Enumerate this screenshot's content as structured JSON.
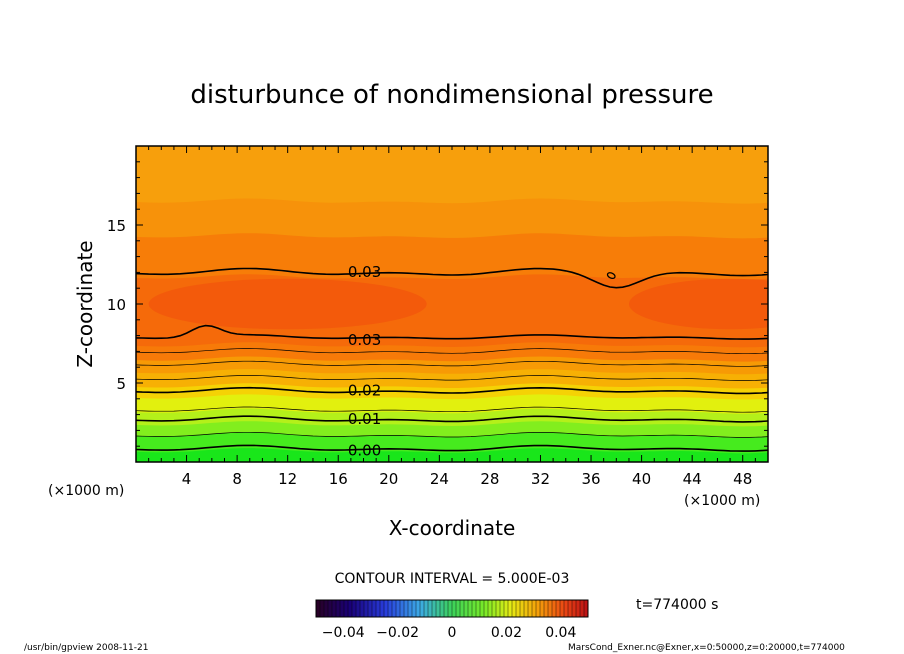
{
  "chart_data": {
    "type": "contour",
    "title": "disturbunce of nondimensional pressure",
    "xlabel": "X-coordinate",
    "ylabel": "Z-coordinate",
    "x_unit_left": "(×1000 m)",
    "x_unit_right": "(×1000 m)",
    "xlim": [
      0,
      50
    ],
    "ylim": [
      0,
      20
    ],
    "xticks": [
      4,
      8,
      12,
      16,
      20,
      24,
      28,
      32,
      36,
      40,
      44,
      48
    ],
    "yticks": [
      5,
      10,
      15
    ],
    "contour_interval_text": "CONTOUR INTERVAL = 5.000E-03",
    "contour_labels": [
      {
        "text": "0.03",
        "x": 16.5,
        "z": 12.1
      },
      {
        "text": "0.03",
        "x": 16.5,
        "z": 7.8
      },
      {
        "text": "0.02",
        "x": 16.5,
        "z": 4.6
      },
      {
        "text": "0.01",
        "x": 16.5,
        "z": 2.8
      },
      {
        "text": "0.00",
        "x": 16.5,
        "z": 0.8
      }
    ],
    "colorbar": {
      "range": [
        -0.05,
        0.05
      ],
      "ticks": [
        "−0.04",
        "−0.02",
        "0",
        "0.02",
        "0.04"
      ],
      "tick_values": [
        -0.04,
        -0.02,
        0,
        0.02,
        0.04
      ]
    },
    "time_label": "t=774000 s",
    "fill_levels": [
      {
        "z": 0.0,
        "color": "#19e61a"
      },
      {
        "z": 1.2,
        "color": "#46eb1e"
      },
      {
        "z": 2.2,
        "color": "#82ee1e"
      },
      {
        "z": 2.9,
        "color": "#b4f01a"
      },
      {
        "z": 3.7,
        "color": "#e2f00e"
      },
      {
        "z": 4.6,
        "color": "#f5d205"
      },
      {
        "z": 5.3,
        "color": "#f7b004"
      },
      {
        "z": 6.2,
        "color": "#f79a05"
      },
      {
        "z": 7.0,
        "color": "#f77a08"
      },
      {
        "z": 7.9,
        "color": "#f56a0a"
      },
      {
        "z": 12.2,
        "color": "#f77d08"
      },
      {
        "z": 14.8,
        "color": "#f7920a"
      },
      {
        "z": 17.0,
        "color": "#f79f0c"
      }
    ],
    "inner_max_color": "#f2560c"
  },
  "footer": {
    "left": "/usr/bin/gpview   2008-11-21",
    "right": "MarsCond_Exner.nc@Exner,x=0:50000,z=0:20000,t=774000"
  }
}
